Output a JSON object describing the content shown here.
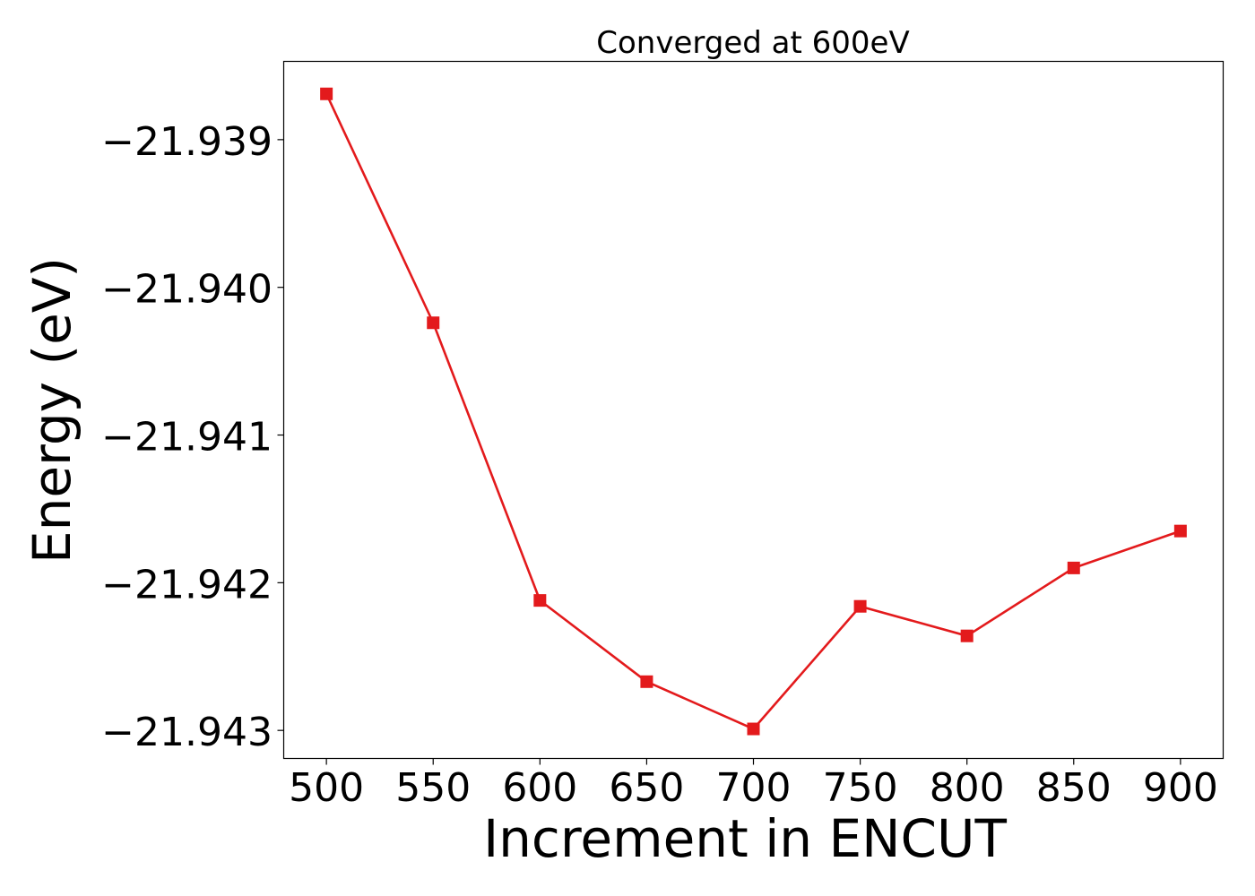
{
  "chart_data": {
    "type": "line",
    "title": "Converged at 600eV",
    "xlabel": "Increment in ENCUT",
    "ylabel": "Energy (eV)",
    "x": [
      500,
      550,
      600,
      650,
      700,
      750,
      800,
      850,
      900
    ],
    "series": [
      {
        "values": [
          -21.93869,
          -21.94024,
          -21.94212,
          -21.94267,
          -21.94299,
          -21.94216,
          -21.94236,
          -21.9419,
          -21.94165
        ],
        "color": "#e31a1c",
        "marker": "square"
      }
    ],
    "xticks": [
      500,
      550,
      600,
      650,
      700,
      750,
      800,
      850,
      900
    ],
    "xtick_labels": [
      "500",
      "550",
      "600",
      "650",
      "700",
      "750",
      "800",
      "850",
      "900"
    ],
    "yticks": [
      -21.939,
      -21.94,
      -21.941,
      -21.942,
      -21.943
    ],
    "ytick_labels": [
      "−21.939",
      "−21.940",
      "−21.941",
      "−21.942",
      "−21.943"
    ],
    "xlim": [
      480,
      920
    ],
    "ylim": [
      -21.94319,
      -21.93847
    ],
    "grid": false,
    "legend": "none"
  }
}
